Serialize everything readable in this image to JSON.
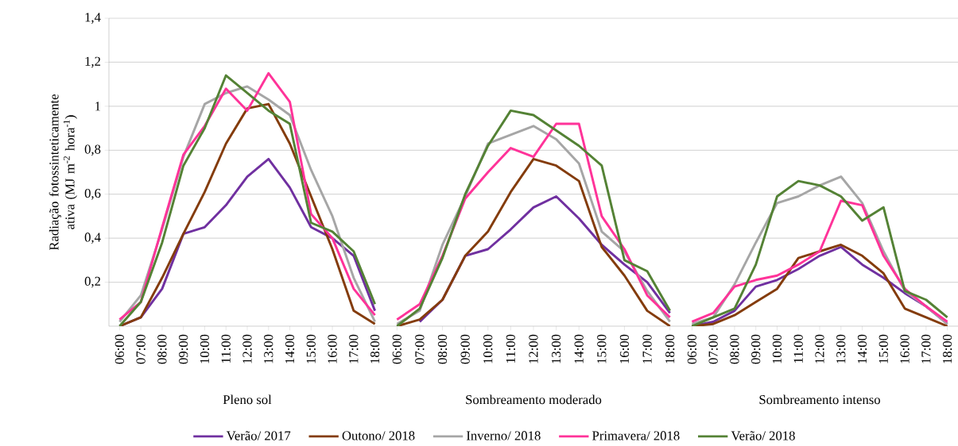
{
  "chart_data": [
    {
      "type": "line",
      "xlabel": "Pleno sol",
      "ylabel": "Radiação fotossinteticamente ativa (MJ m$^{-2}$ hora$^{-1}$)",
      "categories": [
        "06:00",
        "07:00",
        "08:00",
        "09:00",
        "10:00",
        "11:00",
        "12:00",
        "13:00",
        "14:00",
        "15:00",
        "16:00",
        "17:00",
        "18:00"
      ],
      "ylim": [
        0,
        1.4
      ],
      "yticks": [
        {
          "value": 0.2,
          "label": "0,2"
        },
        {
          "value": 0.4,
          "label": "0,4"
        },
        {
          "value": 0.6,
          "label": "0,6"
        },
        {
          "value": 0.8,
          "label": "0,8"
        },
        1,
        {
          "value": 1.2,
          "label": "1,2"
        },
        {
          "value": 1.4,
          "label": "1,4"
        }
      ],
      "grid": "y",
      "legend": "bottom",
      "series": [
        {
          "name": "Verão/ 2017",
          "color": "#7030a0",
          "values": [
            0.0,
            0.04,
            0.17,
            0.42,
            0.45,
            0.55,
            0.68,
            0.76,
            0.63,
            0.45,
            0.4,
            0.32,
            0.07
          ]
        },
        {
          "name": "Outono/ 2018",
          "color": "#843c0c",
          "values": [
            0.0,
            0.04,
            0.22,
            0.42,
            0.61,
            0.83,
            0.99,
            1.01,
            0.83,
            0.59,
            0.35,
            0.07,
            0.01
          ]
        },
        {
          "name": "Inverno/ 2018",
          "color": "#a6a6a6",
          "values": [
            0.02,
            0.14,
            0.44,
            0.77,
            1.01,
            1.06,
            1.09,
            1.03,
            0.96,
            0.71,
            0.5,
            0.22,
            0.02
          ]
        },
        {
          "name": "Primavera/ 2018",
          "color": "#ff3399",
          "values": [
            0.03,
            0.11,
            0.45,
            0.78,
            0.91,
            1.08,
            0.98,
            1.15,
            1.02,
            0.51,
            0.4,
            0.17,
            0.05
          ]
        },
        {
          "name": "Verão/ 2018",
          "color": "#548235",
          "values": [
            0.0,
            0.11,
            0.38,
            0.73,
            0.9,
            1.14,
            1.06,
            0.98,
            0.92,
            0.47,
            0.43,
            0.34,
            0.1
          ]
        }
      ]
    },
    {
      "type": "line",
      "xlabel": "Sombreamento moderado",
      "categories": [
        "06:00",
        "07:00",
        "08:00",
        "09:00",
        "10:00",
        "11:00",
        "12:00",
        "13:00",
        "14:00",
        "15:00",
        "16:00",
        "17:00",
        "18:00"
      ],
      "ylim": [
        0,
        1.4
      ],
      "yticks": [
        0.2,
        0.4,
        0.6,
        0.8,
        1,
        1.2,
        1.4
      ],
      "grid": "y",
      "tick_labels": "x",
      "series": [
        {
          "color": "#7030a0",
          "values": [
            null,
            0.02,
            0.12,
            0.32,
            0.35,
            0.44,
            0.54,
            0.59,
            0.49,
            0.37,
            0.28,
            0.2,
            0.06
          ]
        },
        {
          "color": "#843c0c",
          "values": [
            0.0,
            0.03,
            0.12,
            0.32,
            0.43,
            0.61,
            0.76,
            0.73,
            0.66,
            0.36,
            0.23,
            0.07,
            0.0
          ]
        },
        {
          "color": "#a6a6a6",
          "values": [
            0.01,
            0.07,
            0.37,
            0.59,
            0.83,
            0.87,
            0.91,
            0.85,
            0.74,
            0.43,
            0.34,
            0.16,
            0.02
          ]
        },
        {
          "color": "#ff3399",
          "values": [
            0.03,
            0.1,
            0.32,
            0.58,
            0.7,
            0.81,
            0.77,
            0.92,
            0.92,
            0.5,
            0.35,
            0.14,
            0.04
          ]
        },
        {
          "color": "#548235",
          "values": [
            0.0,
            0.08,
            0.31,
            0.6,
            0.82,
            0.98,
            0.96,
            0.89,
            0.82,
            0.73,
            0.3,
            0.25,
            0.07
          ]
        }
      ]
    },
    {
      "type": "line",
      "xlabel": "Sombreamento intenso",
      "categories": [
        "06:00",
        "07:00",
        "08:00",
        "09:00",
        "10:00",
        "11:00",
        "12:00",
        "13:00",
        "14:00",
        "15:00",
        "16:00",
        "17:00",
        "18:00"
      ],
      "ylim": [
        0,
        1.4
      ],
      "yticks": [
        0.2,
        0.4,
        0.6,
        0.8,
        1,
        1.2,
        1.4
      ],
      "grid": "y",
      "tick_labels": "x",
      "series": [
        {
          "color": "#7030a0",
          "values": [
            0.0,
            0.02,
            0.07,
            0.18,
            0.21,
            0.26,
            0.32,
            0.36,
            0.28,
            0.22,
            0.15,
            0.09,
            0.01
          ]
        },
        {
          "color": "#843c0c",
          "values": [
            0.0,
            0.01,
            0.05,
            0.11,
            0.17,
            0.31,
            0.34,
            0.37,
            0.32,
            0.24,
            0.08,
            0.04,
            0.0
          ]
        },
        {
          "color": "#a6a6a6",
          "values": [
            0.01,
            0.04,
            0.19,
            0.38,
            0.56,
            0.59,
            0.64,
            0.68,
            0.56,
            0.34,
            0.16,
            0.09,
            0.01
          ]
        },
        {
          "color": "#ff3399",
          "values": [
            0.02,
            0.06,
            0.18,
            0.21,
            0.23,
            0.28,
            0.34,
            0.57,
            0.55,
            0.32,
            0.17,
            0.09,
            0.02
          ]
        },
        {
          "color": "#548235",
          "values": [
            0.0,
            0.04,
            0.08,
            0.28,
            0.59,
            0.66,
            0.64,
            0.59,
            0.48,
            0.54,
            0.16,
            0.12,
            0.04
          ]
        }
      ]
    }
  ]
}
